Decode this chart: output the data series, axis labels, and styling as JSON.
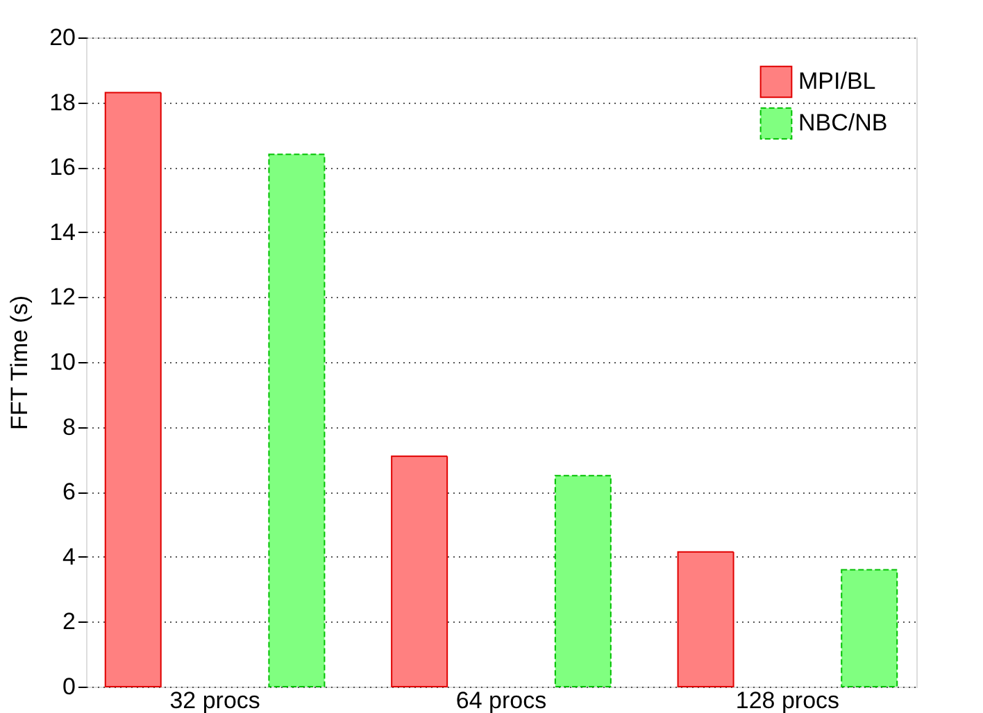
{
  "chart_data": {
    "type": "bar",
    "ylabel": "FFT Time (s)",
    "categories": [
      "32 procs",
      "64 procs",
      "128 procs"
    ],
    "series": [
      {
        "name": "MPI/BL",
        "color": "#ff8080",
        "values": [
          18.3,
          7.1,
          4.15
        ]
      },
      {
        "name": "NBC/NB",
        "color": "#80ff80",
        "values": [
          16.4,
          6.5,
          3.6
        ]
      }
    ],
    "ylim": [
      0,
      20
    ],
    "yticks": [
      0,
      2,
      4,
      6,
      8,
      10,
      12,
      14,
      16,
      18,
      20
    ],
    "grid": "y",
    "legend": "top right"
  }
}
